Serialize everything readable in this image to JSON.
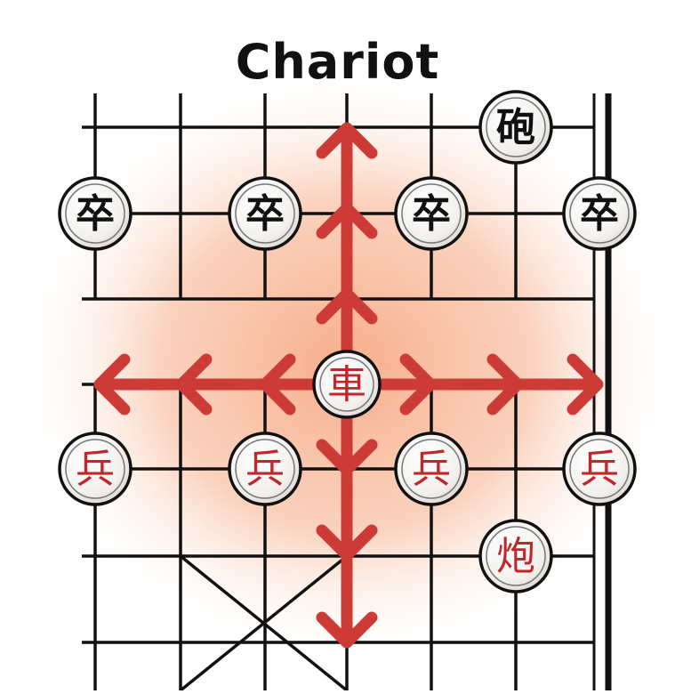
{
  "diagram": {
    "title": "Chariot",
    "piece_colors": {
      "black": "#111111",
      "red": "#c0262a"
    },
    "arrow_color": "#cd3b37",
    "highlight_color": "#f7b08f",
    "pieces": [
      {
        "name": "black-cannon",
        "char": "砲",
        "side": "black"
      },
      {
        "name": "black-soldier-1",
        "char": "卒",
        "side": "black"
      },
      {
        "name": "black-soldier-2",
        "char": "卒",
        "side": "black"
      },
      {
        "name": "black-soldier-3",
        "char": "卒",
        "side": "black"
      },
      {
        "name": "black-soldier-4",
        "char": "卒",
        "side": "black"
      },
      {
        "name": "red-chariot",
        "char": "車",
        "side": "red"
      },
      {
        "name": "red-soldier-1",
        "char": "兵",
        "side": "red"
      },
      {
        "name": "red-soldier-2",
        "char": "兵",
        "side": "red"
      },
      {
        "name": "red-soldier-3",
        "char": "兵",
        "side": "red"
      },
      {
        "name": "red-soldier-4",
        "char": "兵",
        "side": "red"
      },
      {
        "name": "red-cannon",
        "char": "炮",
        "side": "red"
      }
    ]
  }
}
